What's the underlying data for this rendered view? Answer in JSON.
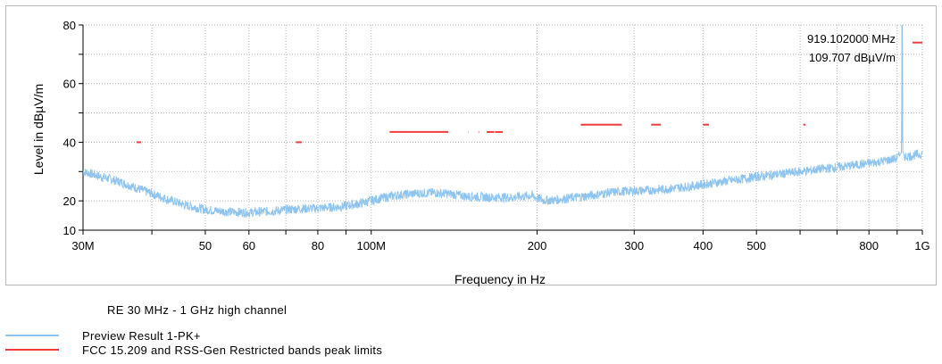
{
  "colors": {
    "preview": "#8ec4f0",
    "limit": "#f03c3c",
    "grid": "#b4b4b4"
  },
  "chart_data": {
    "type": "line",
    "xscale": "log",
    "xlim": [
      30000000,
      1000000000
    ],
    "ylim": [
      10,
      80
    ],
    "xlabel": "Frequency in Hz",
    "ylabel": "Level in dBµV/m",
    "grid": true,
    "legend_placement": "bottom-left",
    "x_ticks": [
      {
        "value": 30000000,
        "label": "30M"
      },
      {
        "value": 50000000,
        "label": "50"
      },
      {
        "value": 60000000,
        "label": "60"
      },
      {
        "value": 80000000,
        "label": "80"
      },
      {
        "value": 100000000,
        "label": "100M"
      },
      {
        "value": 200000000,
        "label": "200"
      },
      {
        "value": 300000000,
        "label": "300"
      },
      {
        "value": 400000000,
        "label": "400"
      },
      {
        "value": 500000000,
        "label": "500"
      },
      {
        "value": 800000000,
        "label": "800"
      },
      {
        "value": 1000000000,
        "label": "1G"
      }
    ],
    "y_ticks": [
      {
        "value": 10,
        "label": "10"
      },
      {
        "value": 20,
        "label": "20"
      },
      {
        "value": 40,
        "label": "40"
      },
      {
        "value": 60,
        "label": "60"
      },
      {
        "value": 80,
        "label": "80"
      }
    ],
    "series": [
      {
        "name": "Preview Result 1-PK+",
        "x": [
          30000000,
          32000000,
          35000000,
          38000000,
          42000000,
          46000000,
          50000000,
          55000000,
          60000000,
          66000000,
          72000000,
          80000000,
          88000000,
          95000000,
          102000000,
          110000000,
          120000000,
          130000000,
          140000000,
          150000000,
          165000000,
          180000000,
          195000000,
          205000000,
          215000000,
          230000000,
          250000000,
          270000000,
          290000000,
          320000000,
          350000000,
          380000000,
          420000000,
          460000000,
          500000000,
          560000000,
          620000000,
          680000000,
          740000000,
          800000000,
          850000000,
          900000000,
          917000000,
          919102000,
          921000000,
          930000000,
          960000000,
          1000000000
        ],
        "values": [
          30,
          28.5,
          26.5,
          24,
          21,
          18.5,
          17,
          16.3,
          16,
          16.5,
          17.2,
          17.5,
          18,
          19,
          20.5,
          21.8,
          22.5,
          22.8,
          22.3,
          21.5,
          21.2,
          21.2,
          21.8,
          20.2,
          20.3,
          21,
          21.8,
          22.8,
          23.3,
          23.6,
          24.2,
          25,
          26.2,
          27.2,
          28.2,
          29.3,
          30.3,
          31.2,
          32,
          32.8,
          33.6,
          34.5,
          36.5,
          109.707,
          37,
          35,
          35.5,
          36
        ]
      },
      {
        "name": "FCC 15.209 and RSS-Gen Restricted bands peak limits",
        "segments": [
          {
            "x": [
              37500000,
              38250000
            ],
            "y": 40
          },
          {
            "x": [
              73000000,
              74800000
            ],
            "y": 40
          },
          {
            "x": [
              108000000,
              138000000
            ],
            "y": 43.5
          },
          {
            "x": [
              149900000,
              150050000
            ],
            "y": 43.5
          },
          {
            "x": [
              156520000,
              156900000
            ],
            "y": 43.5
          },
          {
            "x": [
              162000000,
              167200000
            ],
            "y": 43.5
          },
          {
            "x": [
              167700000,
              173200000
            ],
            "y": 43.5
          },
          {
            "x": [
              240000000,
              285000000
            ],
            "y": 46
          },
          {
            "x": [
              322000000,
              335400000
            ],
            "y": 46
          },
          {
            "x": [
              399900000,
              410000000
            ],
            "y": 46
          },
          {
            "x": [
              608000000,
              614000000
            ],
            "y": 46
          },
          {
            "x": [
              960000000,
              1000000000
            ],
            "y": 74
          }
        ]
      }
    ],
    "marker": {
      "x": 919102000,
      "y": 109.707,
      "label_freq": "919.102000 MHz",
      "label_level": "109.707 dBµV/m"
    }
  },
  "legend": {
    "title": "RE 30 MHz - 1  GHz high channel",
    "items": [
      {
        "label": "Preview Result 1-PK+",
        "color": "#8ec4f0"
      },
      {
        "label": "FCC 15.209 and RSS-Gen Restricted bands peak limits",
        "color": "#f03c3c"
      }
    ]
  }
}
